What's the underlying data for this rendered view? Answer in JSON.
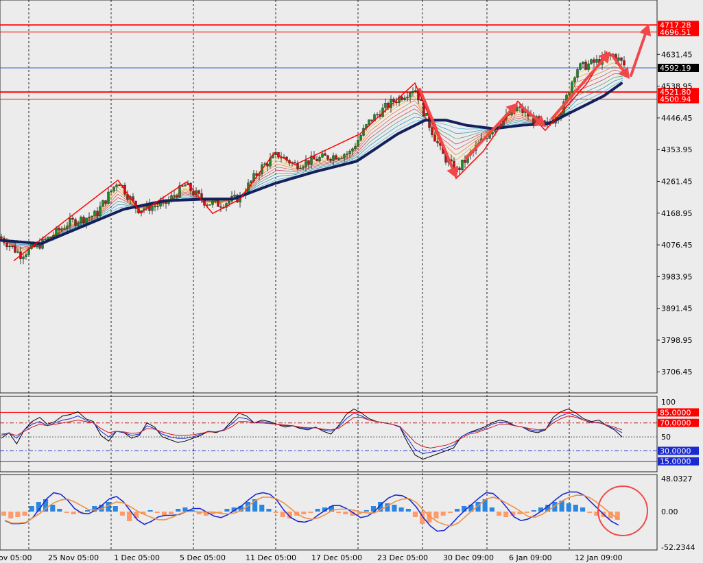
{
  "colors": {
    "background": "#ececec",
    "bull_candle": "#1a8a2a",
    "bear_candle": "#c0101a",
    "grid": "#222222",
    "support_resistance": "#ff0000",
    "current_price": "#3b5bd6",
    "trend_ma": "#14205a",
    "annotation": "#f0484a",
    "signal_down_bar": "#ff9b6a",
    "signal_up_bar": "#2c86e0"
  },
  "chart_data": [
    {
      "type": "candlestick",
      "panel": "main",
      "y_ticks": [
        4631.45,
        4538.95,
        4446.45,
        4353.95,
        4261.45,
        4168.95,
        4076.45,
        3983.95,
        3891.45,
        3798.95,
        3706.45
      ],
      "ylim": [
        3645,
        4790
      ],
      "x_labels": [
        "ov 05:00",
        "25 Nov 05:00",
        "1 Dec 05:00",
        "5 Dec 05:00",
        "11 Dec 05:00",
        "17 Dec 05:00",
        "23 Dec 05:00",
        "30 Dec 09:00",
        "6 Jan 09:00",
        "12 Jan 09:00"
      ],
      "horizontal_levels": [
        4717.28,
        4696.51,
        4521.8,
        4500.94
      ],
      "current_price": 4592.19,
      "price_path": [
        [
          0,
          4100
        ],
        [
          30,
          4048
        ],
        [
          60,
          4080
        ],
        [
          100,
          4140
        ],
        [
          140,
          4165
        ],
        [
          172,
          4265
        ],
        [
          200,
          4180
        ],
        [
          240,
          4195
        ],
        [
          270,
          4250
        ],
        [
          300,
          4200
        ],
        [
          320,
          4195
        ],
        [
          350,
          4215
        ],
        [
          380,
          4300
        ],
        [
          405,
          4340
        ],
        [
          430,
          4310
        ],
        [
          470,
          4330
        ],
        [
          510,
          4345
        ],
        [
          540,
          4440
        ],
        [
          570,
          4490
        ],
        [
          605,
          4535
        ],
        [
          625,
          4430
        ],
        [
          645,
          4340
        ],
        [
          665,
          4290
        ],
        [
          690,
          4350
        ],
        [
          720,
          4420
        ],
        [
          755,
          4475
        ],
        [
          780,
          4440
        ],
        [
          795,
          4420
        ],
        [
          820,
          4470
        ],
        [
          840,
          4590
        ],
        [
          870,
          4610
        ],
        [
          895,
          4630
        ],
        [
          910,
          4600
        ]
      ],
      "trend_ma_path": [
        [
          0,
          4090
        ],
        [
          60,
          4080
        ],
        [
          120,
          4130
        ],
        [
          180,
          4180
        ],
        [
          240,
          4205
        ],
        [
          300,
          4210
        ],
        [
          340,
          4210
        ],
        [
          400,
          4255
        ],
        [
          460,
          4290
        ],
        [
          520,
          4320
        ],
        [
          580,
          4400
        ],
        [
          620,
          4440
        ],
        [
          650,
          4440
        ],
        [
          680,
          4425
        ],
        [
          720,
          4415
        ],
        [
          760,
          4425
        ],
        [
          800,
          4430
        ],
        [
          840,
          4470
        ],
        [
          880,
          4510
        ],
        [
          908,
          4550
        ]
      ],
      "zigzag": [
        [
          20,
          4030
        ],
        [
          55,
          4085
        ],
        [
          172,
          4265
        ],
        [
          205,
          4170
        ],
        [
          272,
          4260
        ],
        [
          310,
          4168
        ],
        [
          350,
          4210
        ],
        [
          400,
          4345
        ],
        [
          430,
          4310
        ],
        [
          525,
          4400
        ],
        [
          605,
          4548
        ],
        [
          665,
          4270
        ],
        [
          705,
          4350
        ],
        [
          755,
          4495
        ],
        [
          795,
          4410
        ],
        [
          855,
          4545
        ],
        [
          885,
          4640
        ]
      ],
      "arrows": [
        [
          [
            612,
            4530
          ],
          [
            666,
            4270
          ]
        ],
        [
          [
            680,
            4330
          ],
          [
            755,
            4490
          ]
        ],
        [
          [
            760,
            4480
          ],
          [
            796,
            4420
          ]
        ],
        [
          [
            805,
            4445
          ],
          [
            890,
            4640
          ]
        ],
        [
          [
            892,
            4630
          ],
          [
            918,
            4560
          ]
        ],
        [
          [
            920,
            4570
          ],
          [
            946,
            4720
          ]
        ]
      ]
    },
    {
      "type": "line",
      "panel": "oscillator",
      "ylim": [
        0,
        108
      ],
      "levels": [
        85.0,
        70.0,
        50,
        30.0,
        15.0
      ],
      "level_labels": [
        "85.0000",
        "70.0000",
        "30.0000",
        "15.0000"
      ],
      "tick_labels": [
        "100",
        "50"
      ],
      "series": [
        {
          "color": "#000000",
          "values": [
            48,
            56,
            40,
            60,
            72,
            78,
            68,
            72,
            80,
            82,
            86,
            76,
            72,
            52,
            44,
            58,
            56,
            48,
            52,
            70,
            64,
            50,
            46,
            42,
            44,
            48,
            52,
            58,
            56,
            60,
            72,
            84,
            80,
            70,
            74,
            72,
            68,
            64,
            66,
            62,
            60,
            64,
            58,
            54,
            66,
            82,
            90,
            84,
            76,
            72,
            70,
            68,
            64,
            42,
            24,
            18,
            22,
            26,
            30,
            34,
            50,
            56,
            60,
            64,
            70,
            74,
            72,
            66,
            64,
            58,
            56,
            60,
            78,
            86,
            90,
            84,
            76,
            72,
            74,
            66,
            60,
            50
          ]
        },
        {
          "color": "#1a2ad0",
          "values": [
            52,
            56,
            48,
            60,
            68,
            72,
            66,
            70,
            74,
            76,
            80,
            74,
            70,
            58,
            50,
            58,
            56,
            52,
            54,
            66,
            62,
            54,
            50,
            48,
            48,
            50,
            54,
            58,
            57,
            60,
            68,
            78,
            76,
            70,
            72,
            70,
            68,
            66,
            66,
            63,
            62,
            63,
            60,
            58,
            64,
            76,
            84,
            80,
            74,
            72,
            70,
            68,
            64,
            48,
            32,
            26,
            28,
            30,
            34,
            38,
            50,
            56,
            58,
            62,
            68,
            71,
            70,
            66,
            64,
            60,
            58,
            61,
            74,
            80,
            84,
            80,
            74,
            70,
            71,
            66,
            62,
            56
          ]
        },
        {
          "color": "#d01a1a",
          "values": [
            54,
            55,
            52,
            58,
            64,
            68,
            66,
            68,
            70,
            72,
            74,
            72,
            70,
            62,
            56,
            58,
            57,
            55,
            56,
            62,
            61,
            57,
            54,
            52,
            52,
            53,
            55,
            57,
            57,
            59,
            64,
            72,
            72,
            70,
            70,
            69,
            68,
            67,
            66,
            64,
            63,
            63,
            61,
            60,
            62,
            70,
            78,
            78,
            74,
            72,
            70,
            68,
            65,
            54,
            42,
            36,
            34,
            36,
            38,
            42,
            48,
            54,
            56,
            60,
            64,
            68,
            68,
            66,
            64,
            62,
            60,
            61,
            70,
            76,
            80,
            78,
            74,
            71,
            70,
            67,
            64,
            60
          ]
        }
      ]
    },
    {
      "type": "bar",
      "panel": "histogram",
      "ylim": [
        -56,
        54
      ],
      "tick_labels": [
        "48.0327",
        "0.00",
        "-52.2344"
      ],
      "values": [
        -6,
        -10,
        -8,
        -6,
        8,
        14,
        18,
        10,
        4,
        -2,
        -4,
        -2,
        2,
        8,
        10,
        14,
        8,
        -6,
        -14,
        -10,
        -4,
        2,
        -2,
        -6,
        -4,
        4,
        6,
        2,
        -4,
        -6,
        -4,
        -2,
        4,
        6,
        8,
        14,
        18,
        10,
        4,
        -2,
        -8,
        -10,
        -6,
        -4,
        -2,
        4,
        6,
        8,
        -2,
        -4,
        -6,
        -4,
        2,
        8,
        14,
        12,
        10,
        6,
        4,
        -8,
        -18,
        -16,
        -10,
        -6,
        -2,
        4,
        8,
        10,
        14,
        18,
        6,
        -6,
        -8,
        -6,
        -4,
        -2,
        2,
        6,
        10,
        14,
        16,
        12,
        10,
        6,
        -2,
        -6,
        -8,
        -10,
        -12
      ]
    }
  ]
}
